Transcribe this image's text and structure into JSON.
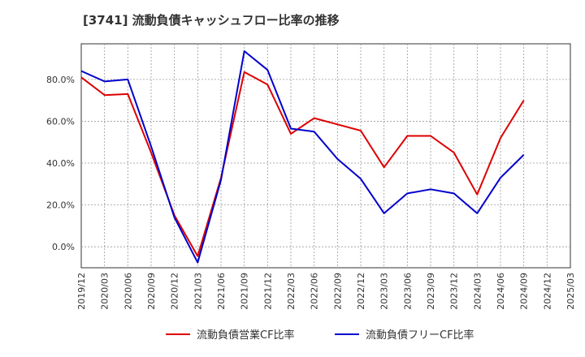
{
  "chart_data": {
    "type": "line",
    "title": "[3741]  流動負債キャッシュフロー比率の推移",
    "xlabel": "",
    "ylabel": "",
    "ylim": [
      -10,
      97
    ],
    "yticks": [
      0,
      20,
      40,
      60,
      80
    ],
    "ytick_labels": [
      "0.0%",
      "20.0%",
      "40.0%",
      "60.0%",
      "80.0%"
    ],
    "grid": true,
    "legend_position": "bottom",
    "categories": [
      "2019/12",
      "2020/03",
      "2020/06",
      "2020/09",
      "2020/12",
      "2021/03",
      "2021/06",
      "2021/09",
      "2021/12",
      "2022/03",
      "2022/06",
      "2022/09",
      "2022/12",
      "2023/03",
      "2023/06",
      "2023/09",
      "2023/12",
      "2024/03",
      "2024/06",
      "2024/09",
      "2024/12",
      "2025/03"
    ],
    "series": [
      {
        "name": "流動負債営業CF比率",
        "color": "#dd0000",
        "values": [
          81,
          72.5,
          73,
          45,
          15,
          -4.5,
          33,
          83.5,
          77.5,
          54,
          61.5,
          58.5,
          55.5,
          38,
          53,
          53,
          45,
          25,
          52,
          70,
          null,
          null
        ]
      },
      {
        "name": "流動負債フリーCF比率",
        "color": "#0000cc",
        "values": [
          84,
          79,
          80,
          48,
          14,
          -7.5,
          32,
          93.5,
          84.5,
          56.5,
          55,
          42,
          32.5,
          16,
          25.5,
          27.5,
          25.5,
          16,
          33,
          44,
          null,
          null
        ]
      }
    ]
  }
}
